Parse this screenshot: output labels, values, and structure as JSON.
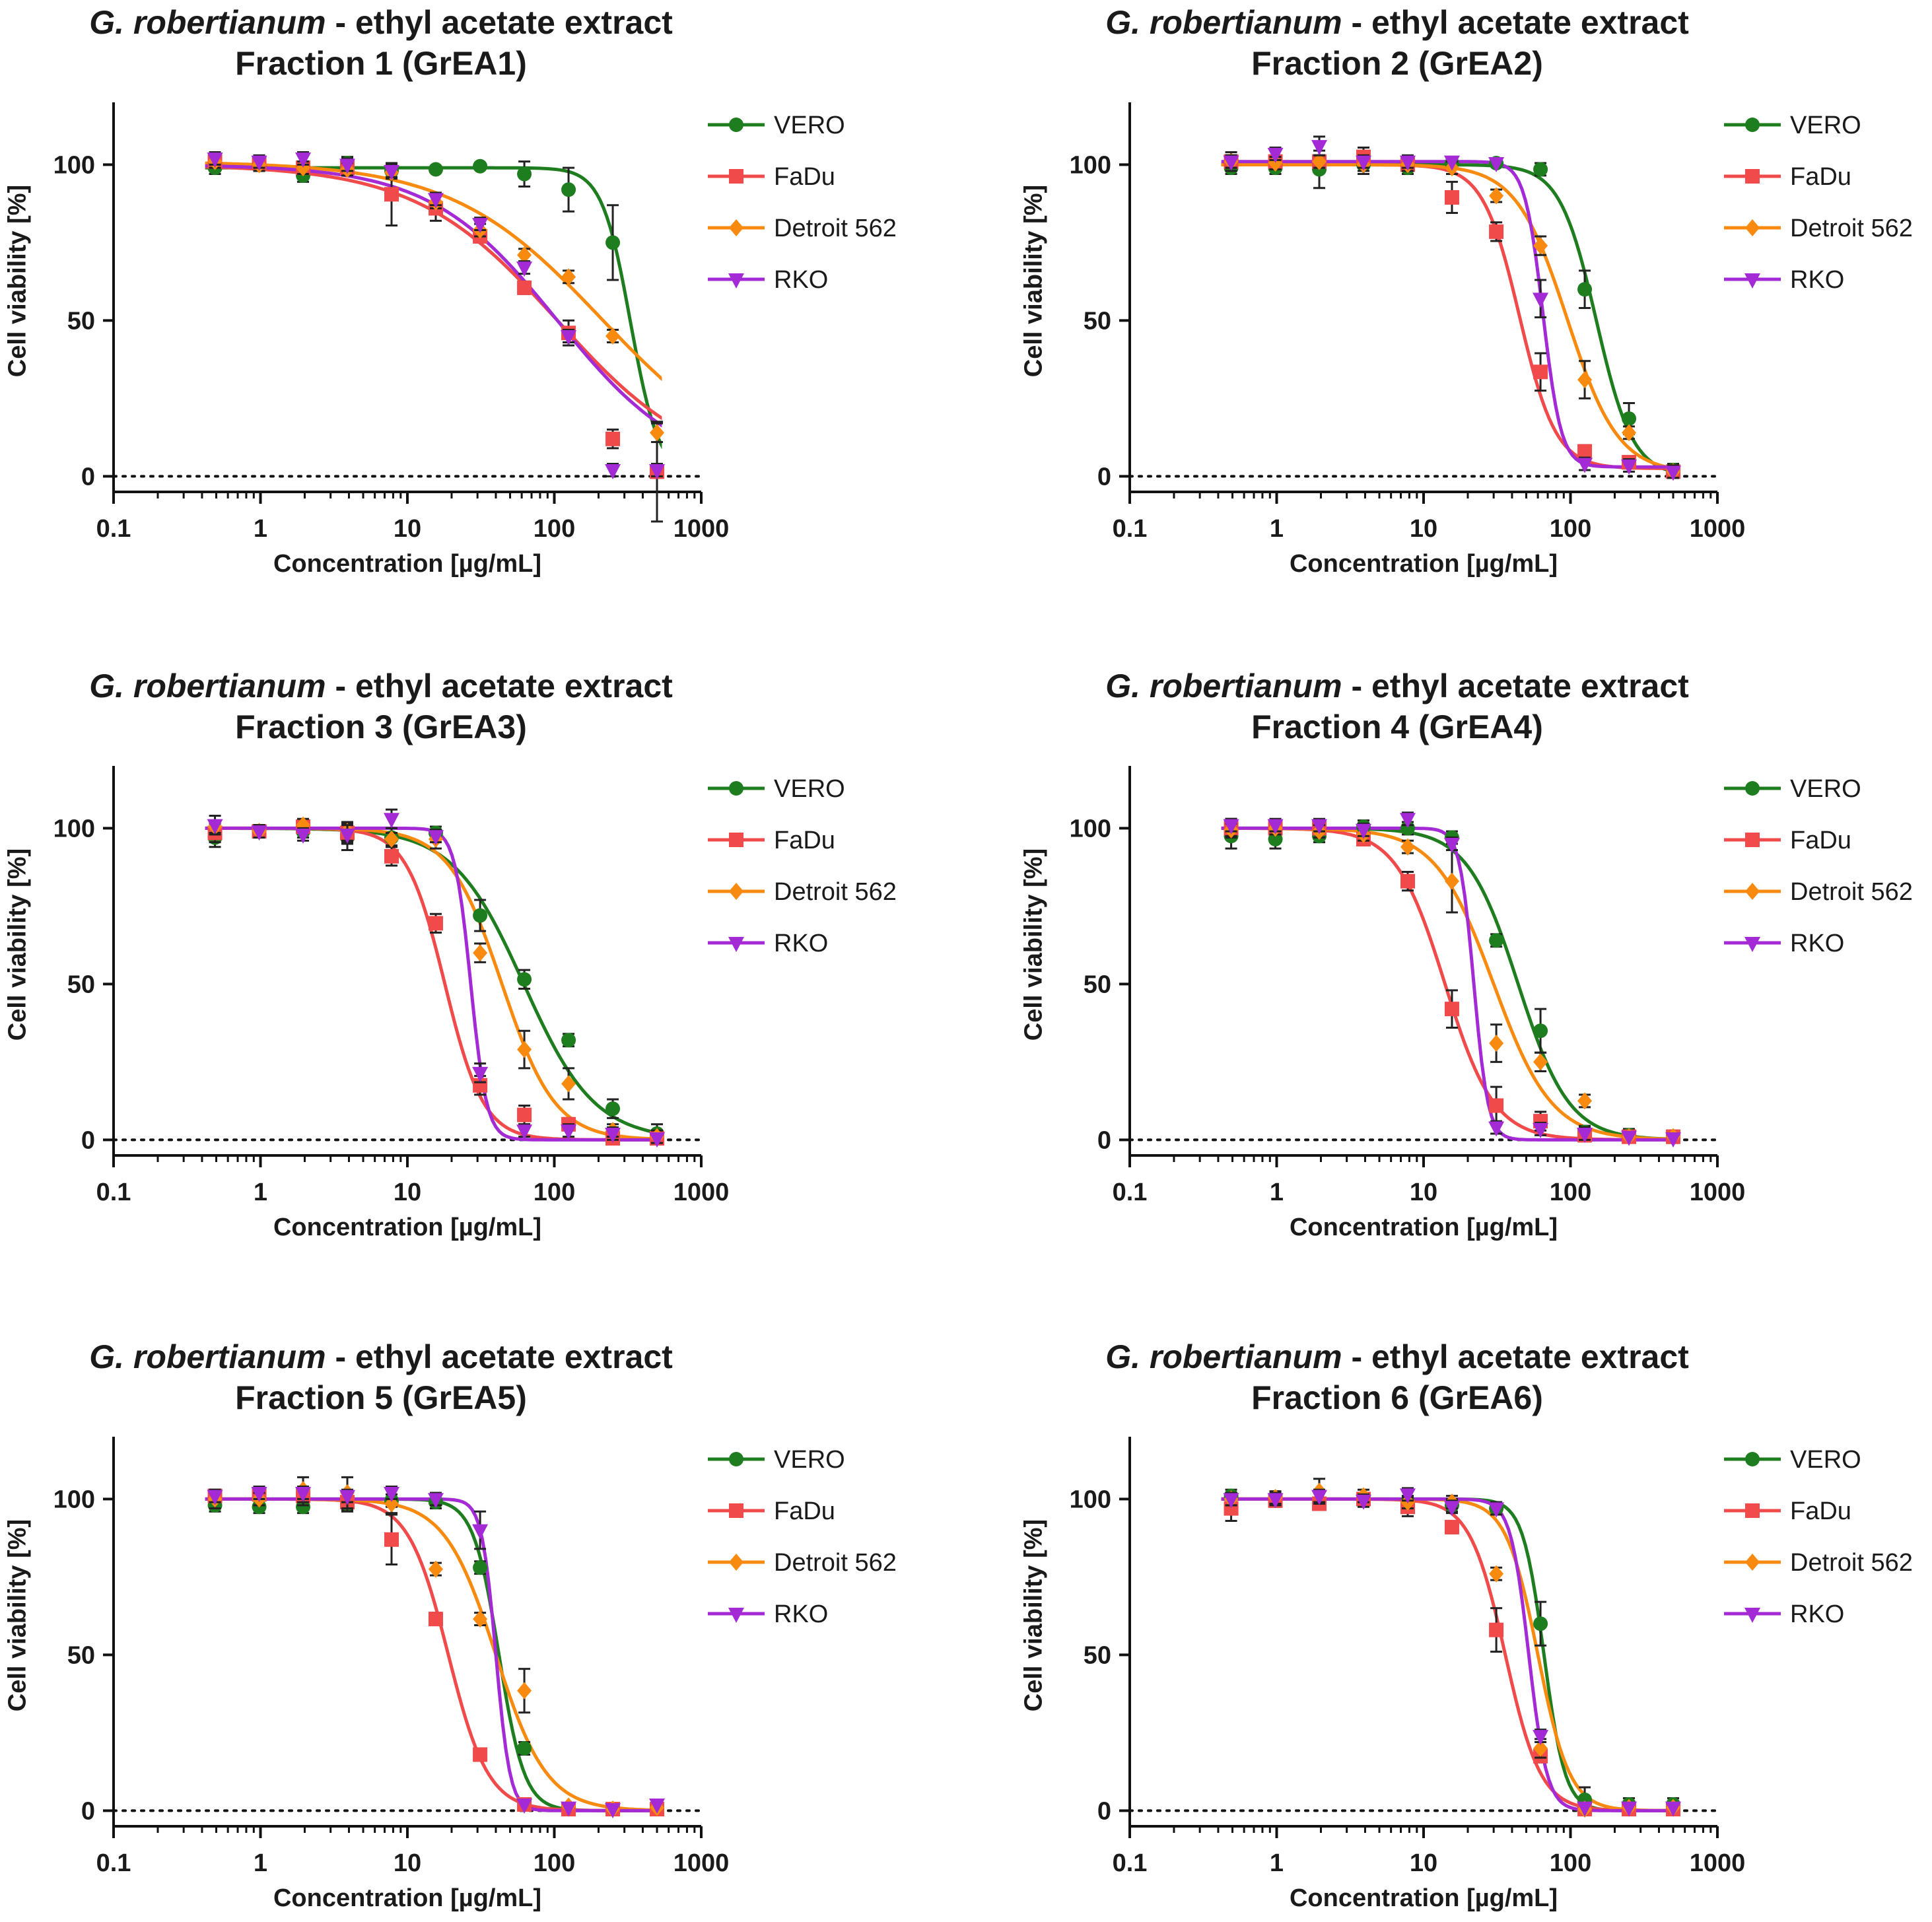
{
  "legend_labels": [
    "VERO",
    "FaDu",
    "Detroit 562",
    "RKO"
  ],
  "colors": {
    "VERO": "#1e7d1e",
    "FaDu": "#f04a4a",
    "Detroit 562": "#f88a10",
    "RKO": "#a32ad4"
  },
  "title_italic": "G. robertianum",
  "title_rest": " - ethyl acetate extract",
  "x_axis_label": "Concentration [µg/mL]",
  "y_axis_label": "Cell viability [%]",
  "chart_data": [
    {
      "type": "line",
      "subtitle": "Fraction 1 (GrEA1)",
      "xscale": "log",
      "xlim": [
        0.1,
        1000
      ],
      "ylim": [
        -5,
        120
      ],
      "xticks": [
        "0.1",
        "1",
        "10",
        "100",
        "1000"
      ],
      "yticks": [
        "0",
        "50",
        "100"
      ],
      "x": [
        0.49,
        0.98,
        1.95,
        3.9,
        7.8,
        15.6,
        31.25,
        62.5,
        125,
        250,
        500
      ],
      "series": [
        {
          "name": "VERO",
          "marker": "circle",
          "values": [
            99,
            100,
            96.5,
            100.5,
            98,
            98.5,
            99.5,
            97,
            92,
            75,
            1.5
          ],
          "errors": [
            2,
            2,
            2,
            2,
            2,
            1,
            1,
            4,
            7,
            12,
            16
          ],
          "fit": {
            "top": 99,
            "bottom": 0,
            "ec50": 330,
            "hill": 4.5
          }
        },
        {
          "name": "FaDu",
          "marker": "square",
          "values": [
            101,
            100.5,
            99,
            99,
            90.5,
            86,
            77,
            60.5,
            46,
            12,
            1.5
          ],
          "errors": [
            2,
            2,
            2,
            2,
            10,
            4,
            2,
            2,
            4,
            3,
            2
          ],
          "fit": {
            "top": 100,
            "bottom": 0,
            "ec50": 105,
            "hill": 0.9
          }
        },
        {
          "name": "Detroit 562",
          "marker": "diamond",
          "values": [
            101,
            100,
            99,
            98.5,
            97.5,
            88,
            79,
            71,
            64,
            45,
            14
          ],
          "errors": [
            2,
            2,
            2,
            2,
            2,
            2,
            2,
            2,
            2,
            2,
            3
          ],
          "fit": {
            "top": 101,
            "bottom": 0,
            "ec50": 210,
            "hill": 0.85
          }
        },
        {
          "name": "RKO",
          "marker": "triangle",
          "values": [
            102,
            101,
            102,
            100,
            98,
            89,
            81,
            67,
            45,
            2,
            2
          ],
          "errors": [
            2,
            2,
            2,
            2,
            2,
            2,
            2,
            2,
            2,
            2,
            2
          ],
          "fit": {
            "top": 100,
            "bottom": 0,
            "ec50": 105,
            "hill": 1.0
          }
        }
      ]
    },
    {
      "type": "line",
      "subtitle": "Fraction 2 (GrEA2)",
      "xscale": "log",
      "xlim": [
        0.1,
        1000
      ],
      "ylim": [
        -5,
        120
      ],
      "xticks": [
        "0.1",
        "1",
        "10",
        "100",
        "1000"
      ],
      "yticks": [
        "0",
        "50",
        "100"
      ],
      "x": [
        0.49,
        0.98,
        1.95,
        3.9,
        7.8,
        15.6,
        31.25,
        62.5,
        125,
        250,
        500
      ],
      "series": [
        {
          "name": "VERO",
          "marker": "circle",
          "values": [
            99,
            99,
            98.5,
            100,
            99,
            100.5,
            100.5,
            98.5,
            60,
            18.5,
            2
          ],
          "errors": [
            2,
            2,
            6,
            3,
            2,
            1,
            1,
            2,
            6,
            5,
            2
          ],
          "fit": {
            "top": 100,
            "bottom": 0,
            "ec50": 150,
            "hill": 3.5
          }
        },
        {
          "name": "FaDu",
          "marker": "square",
          "values": [
            101,
            101,
            101,
            102.5,
            100,
            89.5,
            78.5,
            33.5,
            8,
            4.5,
            1.5
          ],
          "errors": [
            3,
            2,
            2,
            3,
            2,
            5,
            3,
            6,
            2,
            2,
            2
          ],
          "fit": {
            "top": 100,
            "bottom": 2.5,
            "ec50": 45,
            "hill": 3.5
          }
        },
        {
          "name": "Detroit 562",
          "marker": "diamond",
          "values": [
            101,
            100.5,
            101,
            100,
            100,
            99,
            90,
            74,
            31,
            14,
            1.5
          ],
          "errors": [
            2,
            2,
            2,
            2,
            2,
            2,
            2,
            3,
            6,
            2,
            2
          ],
          "fit": {
            "top": 100,
            "bottom": 1,
            "ec50": 95,
            "hill": 2.5
          }
        },
        {
          "name": "RKO",
          "marker": "triangle",
          "values": [
            101,
            103.5,
            106,
            101,
            101,
            101,
            100.5,
            57,
            4,
            3.5,
            1.5
          ],
          "errors": [
            2,
            2,
            3,
            2,
            2,
            1,
            1,
            6,
            2,
            2,
            2
          ],
          "fit": {
            "top": 101,
            "bottom": 3,
            "ec50": 65,
            "hill": 7
          }
        }
      ]
    },
    {
      "type": "line",
      "subtitle": "Fraction 3 (GrEA3)",
      "xscale": "log",
      "xlim": [
        0.1,
        1000
      ],
      "ylim": [
        -5,
        120
      ],
      "xticks": [
        "0.1",
        "1",
        "10",
        "100",
        "1000"
      ],
      "yticks": [
        "0",
        "50",
        "100"
      ],
      "x": [
        0.49,
        0.98,
        1.95,
        3.9,
        7.8,
        15.6,
        31.25,
        62.5,
        125,
        250,
        500
      ],
      "series": [
        {
          "name": "VERO",
          "marker": "circle",
          "values": [
            97,
            99,
            99,
            97,
            97,
            98.5,
            72,
            51.5,
            32,
            10,
            2
          ],
          "errors": [
            3,
            2,
            2,
            4,
            3,
            2,
            5,
            3,
            2,
            3,
            3
          ],
          "fit": {
            "top": 100,
            "bottom": 0,
            "ec50": 62,
            "hill": 1.8
          }
        },
        {
          "name": "FaDu",
          "marker": "square",
          "values": [
            98.5,
            99,
            100.5,
            98.5,
            91,
            69.5,
            17.5,
            8,
            5,
            0.5,
            0.5
          ],
          "errors": [
            3,
            2,
            2,
            3,
            3,
            3,
            3,
            3,
            2,
            1,
            1
          ],
          "fit": {
            "top": 100,
            "bottom": 0,
            "ec50": 18,
            "hill": 3.3
          }
        },
        {
          "name": "Detroit 562",
          "marker": "diamond",
          "values": [
            100.5,
            99,
            101,
            99,
            96.5,
            96.5,
            60,
            29,
            18,
            3,
            1
          ],
          "errors": [
            2,
            2,
            2,
            3,
            2,
            3,
            3,
            6,
            5,
            2,
            2
          ],
          "fit": {
            "top": 100,
            "bottom": 0,
            "ec50": 44,
            "hill": 2.4
          }
        },
        {
          "name": "RKO",
          "marker": "triangle",
          "values": [
            101,
            99,
            98,
            98,
            103,
            97.5,
            21.5,
            3,
            3,
            2,
            0.5
          ],
          "errors": [
            3,
            2,
            2,
            3,
            3,
            2,
            3,
            2,
            2,
            2,
            1
          ],
          "fit": {
            "top": 100,
            "bottom": 0,
            "ec50": 27,
            "hill": 8
          }
        }
      ]
    },
    {
      "type": "line",
      "subtitle": "Fraction 4 (GrEA4)",
      "xscale": "log",
      "xlim": [
        0.1,
        1000
      ],
      "ylim": [
        -5,
        120
      ],
      "xticks": [
        "0.1",
        "1",
        "10",
        "100",
        "1000"
      ],
      "yticks": [
        "0",
        "50",
        "100"
      ],
      "x": [
        0.49,
        0.98,
        1.95,
        3.9,
        7.8,
        15.6,
        31.25,
        62.5,
        125,
        250,
        500
      ],
      "series": [
        {
          "name": "VERO",
          "marker": "circle",
          "values": [
            97.5,
            96.5,
            97.5,
            100.5,
            100,
            97,
            64,
            35,
            2.5,
            1.5,
            1
          ],
          "errors": [
            4,
            3,
            2,
            2,
            2,
            2,
            2,
            7,
            2,
            2,
            2
          ],
          "fit": {
            "top": 100,
            "bottom": 0,
            "ec50": 44,
            "hill": 2.5
          }
        },
        {
          "name": "FaDu",
          "marker": "square",
          "values": [
            100,
            100,
            100,
            96.5,
            83,
            42,
            11,
            6,
            1.5,
            1,
            1
          ],
          "errors": [
            3,
            2,
            2,
            2,
            3,
            6,
            6,
            3,
            2,
            1,
            1
          ],
          "fit": {
            "top": 100,
            "bottom": 0,
            "ec50": 14,
            "hill": 2.6
          }
        },
        {
          "name": "Detroit 562",
          "marker": "diamond",
          "values": [
            99.5,
            100,
            99,
            98,
            94,
            83,
            31,
            25,
            12.5,
            1,
            1
          ],
          "errors": [
            2,
            2,
            2,
            2,
            2,
            10,
            6,
            3,
            2,
            1,
            1
          ],
          "fit": {
            "top": 100,
            "bottom": 0,
            "ec50": 30,
            "hill": 2.2
          }
        },
        {
          "name": "RKO",
          "marker": "triangle",
          "values": [
            101,
            101,
            101,
            99.5,
            103,
            95,
            4,
            3.5,
            2,
            1,
            0.5
          ],
          "errors": [
            2,
            2,
            2,
            2,
            2,
            2,
            2,
            2,
            2,
            1,
            1
          ],
          "fit": {
            "top": 100,
            "bottom": 0,
            "ec50": 22,
            "hill": 9
          }
        }
      ]
    },
    {
      "type": "line",
      "subtitle": "Fraction 5 (GrEA5)",
      "xscale": "log",
      "xlim": [
        0.1,
        1000
      ],
      "ylim": [
        -5,
        120
      ],
      "xticks": [
        "0.1",
        "1",
        "10",
        "100",
        "1000"
      ],
      "yticks": [
        "0",
        "50",
        "100"
      ],
      "x": [
        0.49,
        0.98,
        1.95,
        3.9,
        7.8,
        15.6,
        31.25,
        62.5,
        125,
        250,
        500
      ],
      "series": [
        {
          "name": "VERO",
          "marker": "circle",
          "values": [
            98,
            97.5,
            97.5,
            98.5,
            99.5,
            99,
            78,
            20,
            0.5,
            0.5,
            1
          ],
          "errors": [
            2,
            2,
            2,
            2,
            2,
            2,
            2,
            2,
            1,
            1,
            1
          ],
          "fit": {
            "top": 100,
            "bottom": 0,
            "ec50": 42,
            "hill": 5
          }
        },
        {
          "name": "FaDu",
          "marker": "square",
          "values": [
            101,
            101.5,
            101,
            99,
            87,
            61.5,
            18,
            2,
            0.5,
            0.5,
            0.5
          ],
          "errors": [
            2,
            2,
            3,
            3,
            8,
            2,
            2,
            2,
            1,
            1,
            1
          ],
          "fit": {
            "top": 100,
            "bottom": 0,
            "ec50": 19,
            "hill": 3.2
          }
        },
        {
          "name": "Detroit 562",
          "marker": "diamond",
          "values": [
            100,
            100,
            103,
            102,
            98.5,
            77.5,
            61.5,
            38.5,
            1.5,
            0.5,
            1
          ],
          "errors": [
            3,
            2,
            4,
            5,
            3,
            2,
            2,
            7,
            1,
            1,
            1
          ],
          "fit": {
            "top": 100,
            "bottom": 0,
            "ec50": 40,
            "hill": 2.5
          }
        },
        {
          "name": "RKO",
          "marker": "triangle",
          "values": [
            101,
            102,
            102,
            101,
            102,
            100,
            90,
            2,
            1,
            0.5,
            2
          ],
          "errors": [
            2,
            2,
            2,
            2,
            2,
            2,
            6,
            1,
            1,
            1,
            1
          ],
          "fit": {
            "top": 100,
            "bottom": 0,
            "ec50": 40,
            "hill": 9
          }
        }
      ]
    },
    {
      "type": "line",
      "subtitle": "Fraction 6 (GrEA6)",
      "xscale": "log",
      "xlim": [
        0.1,
        1000
      ],
      "ylim": [
        -5,
        120
      ],
      "xticks": [
        "0.1",
        "1",
        "10",
        "100",
        "1000"
      ],
      "yticks": [
        "0",
        "50",
        "100"
      ],
      "x": [
        0.49,
        0.98,
        1.95,
        3.9,
        7.8,
        15.6,
        31.25,
        62.5,
        125,
        250,
        500
      ],
      "series": [
        {
          "name": "VERO",
          "marker": "circle",
          "values": [
            101,
            100,
            98.5,
            100,
            99,
            98,
            97,
            60,
            3.5,
            2,
            2
          ],
          "errors": [
            2,
            2,
            2,
            2,
            2,
            2,
            2,
            7,
            4,
            2,
            2
          ],
          "fit": {
            "top": 100,
            "bottom": 0,
            "ec50": 66,
            "hill": 6
          }
        },
        {
          "name": "FaDu",
          "marker": "square",
          "values": [
            97,
            99.5,
            98.5,
            100,
            97.5,
            91,
            58,
            17.5,
            0.5,
            0.5,
            0.5
          ],
          "errors": [
            4,
            2,
            2,
            2,
            3,
            2,
            7,
            2,
            1,
            1,
            1
          ],
          "fit": {
            "top": 100,
            "bottom": 0,
            "ec50": 36,
            "hill": 3.6
          }
        },
        {
          "name": "Detroit 562",
          "marker": "diamond",
          "values": [
            100,
            100.5,
            102.5,
            101,
            99,
            99,
            76,
            20,
            0.5,
            1,
            1
          ],
          "errors": [
            2,
            2,
            4,
            2,
            2,
            2,
            2,
            3,
            1,
            1,
            1
          ],
          "fit": {
            "top": 100,
            "bottom": 0,
            "ec50": 60,
            "hill": 4
          }
        },
        {
          "name": "RKO",
          "marker": "triangle",
          "values": [
            100,
            100,
            101,
            99.5,
            101.5,
            97.5,
            97,
            24,
            1,
            1,
            1
          ],
          "errors": [
            2,
            2,
            2,
            2,
            2,
            2,
            2,
            2,
            1,
            1,
            1
          ],
          "fit": {
            "top": 100,
            "bottom": 0,
            "ec50": 52,
            "hill": 7
          }
        }
      ]
    }
  ]
}
